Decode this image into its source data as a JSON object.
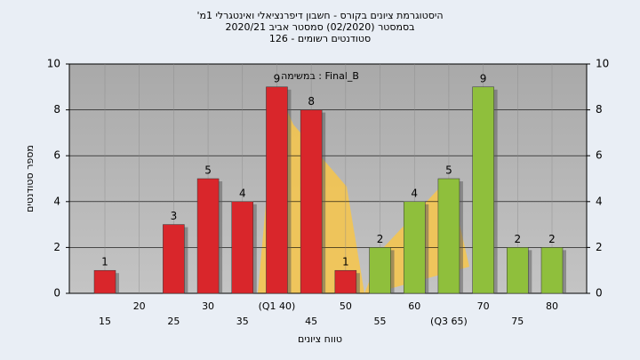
{
  "chart_data": {
    "type": "bar",
    "title": [
      "'היסטוגרמת ציונים בקורס - חשבון דיפרנציאלי ואינטגרלי 1מ",
      "בסמסטר  (02/2020)  סמסטר אביב 2020/21",
      "סטודנטים רשומים - 126"
    ],
    "annotation": "במשימה : Final_B",
    "x_label": "טווח ציונים",
    "y_label": "מספר סטודנטים",
    "categories": [
      "15",
      "20",
      "25",
      "30",
      "35",
      "(Q1 40)",
      "45",
      "50",
      "55",
      "60",
      "(Q3 65)",
      "70",
      "75",
      "80"
    ],
    "values": [
      1,
      null,
      3,
      5,
      4,
      9,
      8,
      1,
      2,
      4,
      5,
      9,
      2,
      2
    ],
    "colors": [
      "#d9262b",
      "#d9262b",
      "#d9262b",
      "#d9262b",
      "#d9262b",
      "#d9262b",
      "#d9262b",
      "#d9262b",
      "#8fbf3c",
      "#8fbf3c",
      "#8fbf3c",
      "#8fbf3c",
      "#8fbf3c",
      "#8fbf3c"
    ],
    "ylim": [
      0,
      10
    ],
    "yticks": [
      0,
      2,
      4,
      6,
      8,
      10
    ],
    "grid": true
  }
}
